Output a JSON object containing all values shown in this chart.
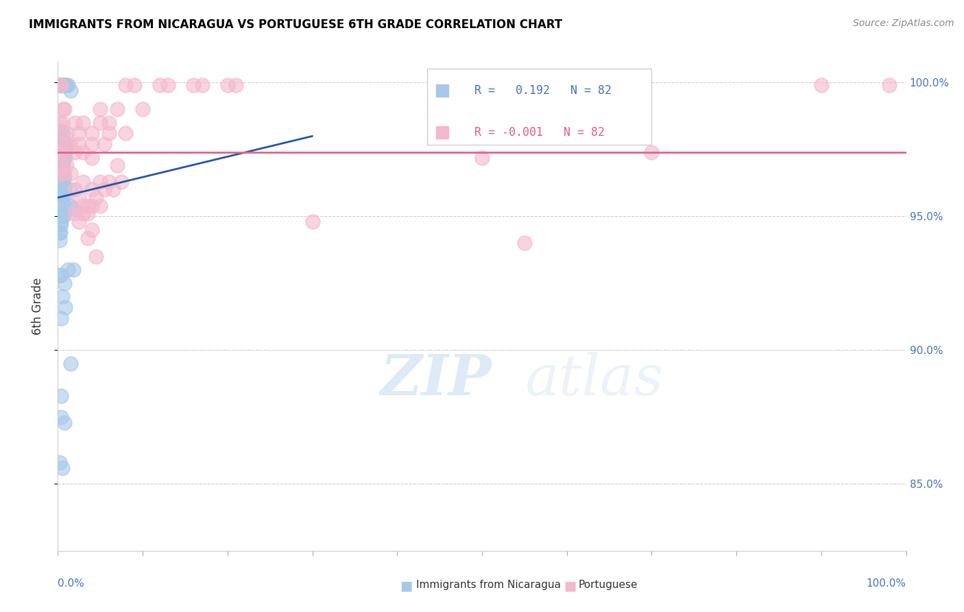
{
  "title": "IMMIGRANTS FROM NICARAGUA VS PORTUGUESE 6TH GRADE CORRELATION CHART",
  "source": "Source: ZipAtlas.com",
  "ylabel": "6th Grade",
  "right_yticks": [
    "100.0%",
    "95.0%",
    "90.0%",
    "85.0%"
  ],
  "right_ytick_vals": [
    1.0,
    0.95,
    0.9,
    0.85
  ],
  "xlim": [
    0.0,
    1.0
  ],
  "ylim": [
    0.825,
    1.008
  ],
  "legend_blue_r": "0.192",
  "legend_blue_n": "82",
  "legend_pink_r": "-0.001",
  "legend_pink_n": "82",
  "legend_label_blue": "Immigrants from Nicaragua",
  "legend_label_pink": "Portuguese",
  "blue_color": "#a8c8e8",
  "pink_color": "#f4b8cc",
  "blue_line_color": "#2255aa",
  "pink_line_color": "#e8608a",
  "blue_scatter": [
    [
      0.002,
      0.999
    ],
    [
      0.003,
      0.999
    ],
    [
      0.004,
      0.999
    ],
    [
      0.005,
      0.999
    ],
    [
      0.006,
      0.999
    ],
    [
      0.007,
      0.999
    ],
    [
      0.008,
      0.999
    ],
    [
      0.009,
      0.999
    ],
    [
      0.01,
      0.999
    ],
    [
      0.012,
      0.999
    ],
    [
      0.015,
      0.997
    ],
    [
      0.003,
      0.982
    ],
    [
      0.004,
      0.982
    ],
    [
      0.006,
      0.981
    ],
    [
      0.003,
      0.978
    ],
    [
      0.006,
      0.978
    ],
    [
      0.007,
      0.977
    ],
    [
      0.008,
      0.977
    ],
    [
      0.002,
      0.975
    ],
    [
      0.003,
      0.975
    ],
    [
      0.004,
      0.975
    ],
    [
      0.005,
      0.975
    ],
    [
      0.006,
      0.975
    ],
    [
      0.009,
      0.975
    ],
    [
      0.01,
      0.975
    ],
    [
      0.002,
      0.972
    ],
    [
      0.003,
      0.972
    ],
    [
      0.004,
      0.972
    ],
    [
      0.005,
      0.972
    ],
    [
      0.007,
      0.972
    ],
    [
      0.009,
      0.972
    ],
    [
      0.002,
      0.969
    ],
    [
      0.003,
      0.969
    ],
    [
      0.004,
      0.969
    ],
    [
      0.006,
      0.969
    ],
    [
      0.002,
      0.967
    ],
    [
      0.003,
      0.967
    ],
    [
      0.005,
      0.967
    ],
    [
      0.008,
      0.965
    ],
    [
      0.003,
      0.965
    ],
    [
      0.004,
      0.965
    ],
    [
      0.002,
      0.963
    ],
    [
      0.004,
      0.963
    ],
    [
      0.006,
      0.963
    ],
    [
      0.008,
      0.961
    ],
    [
      0.014,
      0.96
    ],
    [
      0.002,
      0.958
    ],
    [
      0.005,
      0.958
    ],
    [
      0.009,
      0.958
    ],
    [
      0.002,
      0.955
    ],
    [
      0.003,
      0.955
    ],
    [
      0.006,
      0.955
    ],
    [
      0.015,
      0.954
    ],
    [
      0.018,
      0.953
    ],
    [
      0.002,
      0.95
    ],
    [
      0.003,
      0.95
    ],
    [
      0.005,
      0.95
    ],
    [
      0.007,
      0.95
    ],
    [
      0.002,
      0.947
    ],
    [
      0.004,
      0.947
    ],
    [
      0.002,
      0.944
    ],
    [
      0.003,
      0.944
    ],
    [
      0.002,
      0.941
    ],
    [
      0.012,
      0.93
    ],
    [
      0.018,
      0.93
    ],
    [
      0.002,
      0.928
    ],
    [
      0.004,
      0.928
    ],
    [
      0.008,
      0.925
    ],
    [
      0.005,
      0.92
    ],
    [
      0.009,
      0.916
    ],
    [
      0.004,
      0.912
    ],
    [
      0.015,
      0.895
    ],
    [
      0.004,
      0.883
    ],
    [
      0.004,
      0.875
    ],
    [
      0.008,
      0.873
    ],
    [
      0.002,
      0.858
    ],
    [
      0.005,
      0.856
    ]
  ],
  "pink_scatter": [
    [
      0.002,
      0.999
    ],
    [
      0.004,
      0.999
    ],
    [
      0.08,
      0.999
    ],
    [
      0.09,
      0.999
    ],
    [
      0.12,
      0.999
    ],
    [
      0.13,
      0.999
    ],
    [
      0.16,
      0.999
    ],
    [
      0.17,
      0.999
    ],
    [
      0.2,
      0.999
    ],
    [
      0.21,
      0.999
    ],
    [
      0.9,
      0.999
    ],
    [
      0.98,
      0.999
    ],
    [
      0.006,
      0.99
    ],
    [
      0.008,
      0.99
    ],
    [
      0.05,
      0.99
    ],
    [
      0.07,
      0.99
    ],
    [
      0.1,
      0.99
    ],
    [
      0.002,
      0.985
    ],
    [
      0.005,
      0.985
    ],
    [
      0.02,
      0.985
    ],
    [
      0.03,
      0.985
    ],
    [
      0.05,
      0.985
    ],
    [
      0.06,
      0.985
    ],
    [
      0.003,
      0.981
    ],
    [
      0.01,
      0.981
    ],
    [
      0.025,
      0.981
    ],
    [
      0.04,
      0.981
    ],
    [
      0.06,
      0.981
    ],
    [
      0.08,
      0.981
    ],
    [
      0.004,
      0.977
    ],
    [
      0.012,
      0.977
    ],
    [
      0.015,
      0.977
    ],
    [
      0.025,
      0.977
    ],
    [
      0.04,
      0.977
    ],
    [
      0.055,
      0.977
    ],
    [
      0.003,
      0.974
    ],
    [
      0.005,
      0.974
    ],
    [
      0.02,
      0.974
    ],
    [
      0.03,
      0.974
    ],
    [
      0.7,
      0.974
    ],
    [
      0.04,
      0.972
    ],
    [
      0.5,
      0.972
    ],
    [
      0.005,
      0.969
    ],
    [
      0.01,
      0.969
    ],
    [
      0.07,
      0.969
    ],
    [
      0.002,
      0.966
    ],
    [
      0.006,
      0.966
    ],
    [
      0.015,
      0.966
    ],
    [
      0.03,
      0.963
    ],
    [
      0.05,
      0.963
    ],
    [
      0.06,
      0.963
    ],
    [
      0.075,
      0.963
    ],
    [
      0.02,
      0.96
    ],
    [
      0.04,
      0.96
    ],
    [
      0.055,
      0.96
    ],
    [
      0.065,
      0.96
    ],
    [
      0.025,
      0.957
    ],
    [
      0.045,
      0.957
    ],
    [
      0.03,
      0.954
    ],
    [
      0.035,
      0.954
    ],
    [
      0.04,
      0.954
    ],
    [
      0.05,
      0.954
    ],
    [
      0.02,
      0.951
    ],
    [
      0.03,
      0.951
    ],
    [
      0.035,
      0.951
    ],
    [
      0.025,
      0.948
    ],
    [
      0.3,
      0.948
    ],
    [
      0.04,
      0.945
    ],
    [
      0.035,
      0.942
    ],
    [
      0.55,
      0.94
    ],
    [
      0.045,
      0.935
    ]
  ],
  "watermark_zip": "ZIP",
  "watermark_atlas": "atlas",
  "grid_color": "#cccccc",
  "background_color": "#ffffff",
  "blue_line_x": [
    0.0,
    0.25
  ],
  "blue_line_y": [
    0.959,
    0.978
  ],
  "pink_line_y": 0.974
}
